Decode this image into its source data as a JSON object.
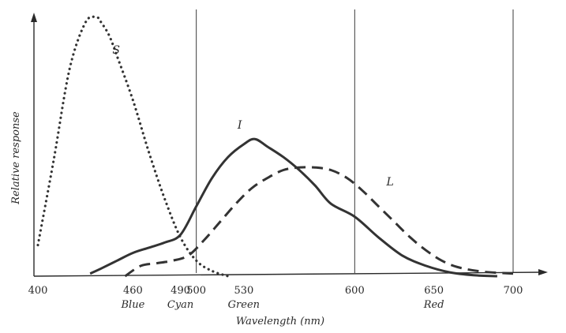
{
  "chart_data": {
    "type": "line",
    "title": "",
    "xlabel": "Wavelength (nm)",
    "ylabel": "Relative response",
    "xlim": [
      400,
      700
    ],
    "ylim": [
      0,
      1
    ],
    "grid": {
      "vertical_lines_at": [
        500,
        600,
        700
      ]
    },
    "xticks": [
      {
        "value": 400,
        "label": "400"
      },
      {
        "value": 460,
        "label": "460"
      },
      {
        "value": 490,
        "label": "490"
      },
      {
        "value": 500,
        "label": "500"
      },
      {
        "value": 530,
        "label": "530"
      },
      {
        "value": 600,
        "label": "600"
      },
      {
        "value": 650,
        "label": "650"
      },
      {
        "value": 700,
        "label": "700"
      }
    ],
    "color_labels": [
      {
        "x": 460,
        "label": "Blue"
      },
      {
        "x": 490,
        "label": "Cyan"
      },
      {
        "x": 530,
        "label": "Green"
      },
      {
        "x": 650,
        "label": "Red"
      }
    ],
    "series": [
      {
        "name": "S",
        "style": "dotted",
        "color": "#333333",
        "x": [
          400,
          410,
          420,
          430,
          437,
          440,
          445,
          450,
          460,
          470,
          480,
          490,
          500,
          510,
          520
        ],
        "y": [
          0.12,
          0.45,
          0.8,
          0.98,
          1.0,
          0.98,
          0.93,
          0.85,
          0.68,
          0.48,
          0.3,
          0.15,
          0.06,
          0.02,
          0.0
        ]
      },
      {
        "name": "I",
        "style": "solid",
        "color": "#333333",
        "x": [
          433,
          440,
          450,
          460,
          470,
          480,
          490,
          500,
          510,
          520,
          530,
          537,
          545,
          555,
          565,
          575,
          585,
          600,
          615,
          630,
          645,
          660,
          675,
          690
        ],
        "y": [
          0.01,
          0.03,
          0.06,
          0.09,
          0.11,
          0.13,
          0.16,
          0.27,
          0.38,
          0.46,
          0.51,
          0.53,
          0.5,
          0.46,
          0.41,
          0.35,
          0.28,
          0.23,
          0.15,
          0.08,
          0.04,
          0.015,
          0.004,
          0.0
        ]
      },
      {
        "name": "L",
        "style": "dashed",
        "color": "#333333",
        "x": [
          455,
          465,
          475,
          485,
          495,
          505,
          515,
          525,
          535,
          545,
          555,
          565,
          575,
          585,
          595,
          605,
          615,
          625,
          635,
          645,
          655,
          665,
          680,
          700
        ],
        "y": [
          0.0,
          0.04,
          0.05,
          0.06,
          0.08,
          0.14,
          0.21,
          0.28,
          0.34,
          0.38,
          0.41,
          0.42,
          0.42,
          0.41,
          0.38,
          0.33,
          0.27,
          0.21,
          0.15,
          0.1,
          0.06,
          0.035,
          0.018,
          0.01
        ]
      }
    ]
  }
}
